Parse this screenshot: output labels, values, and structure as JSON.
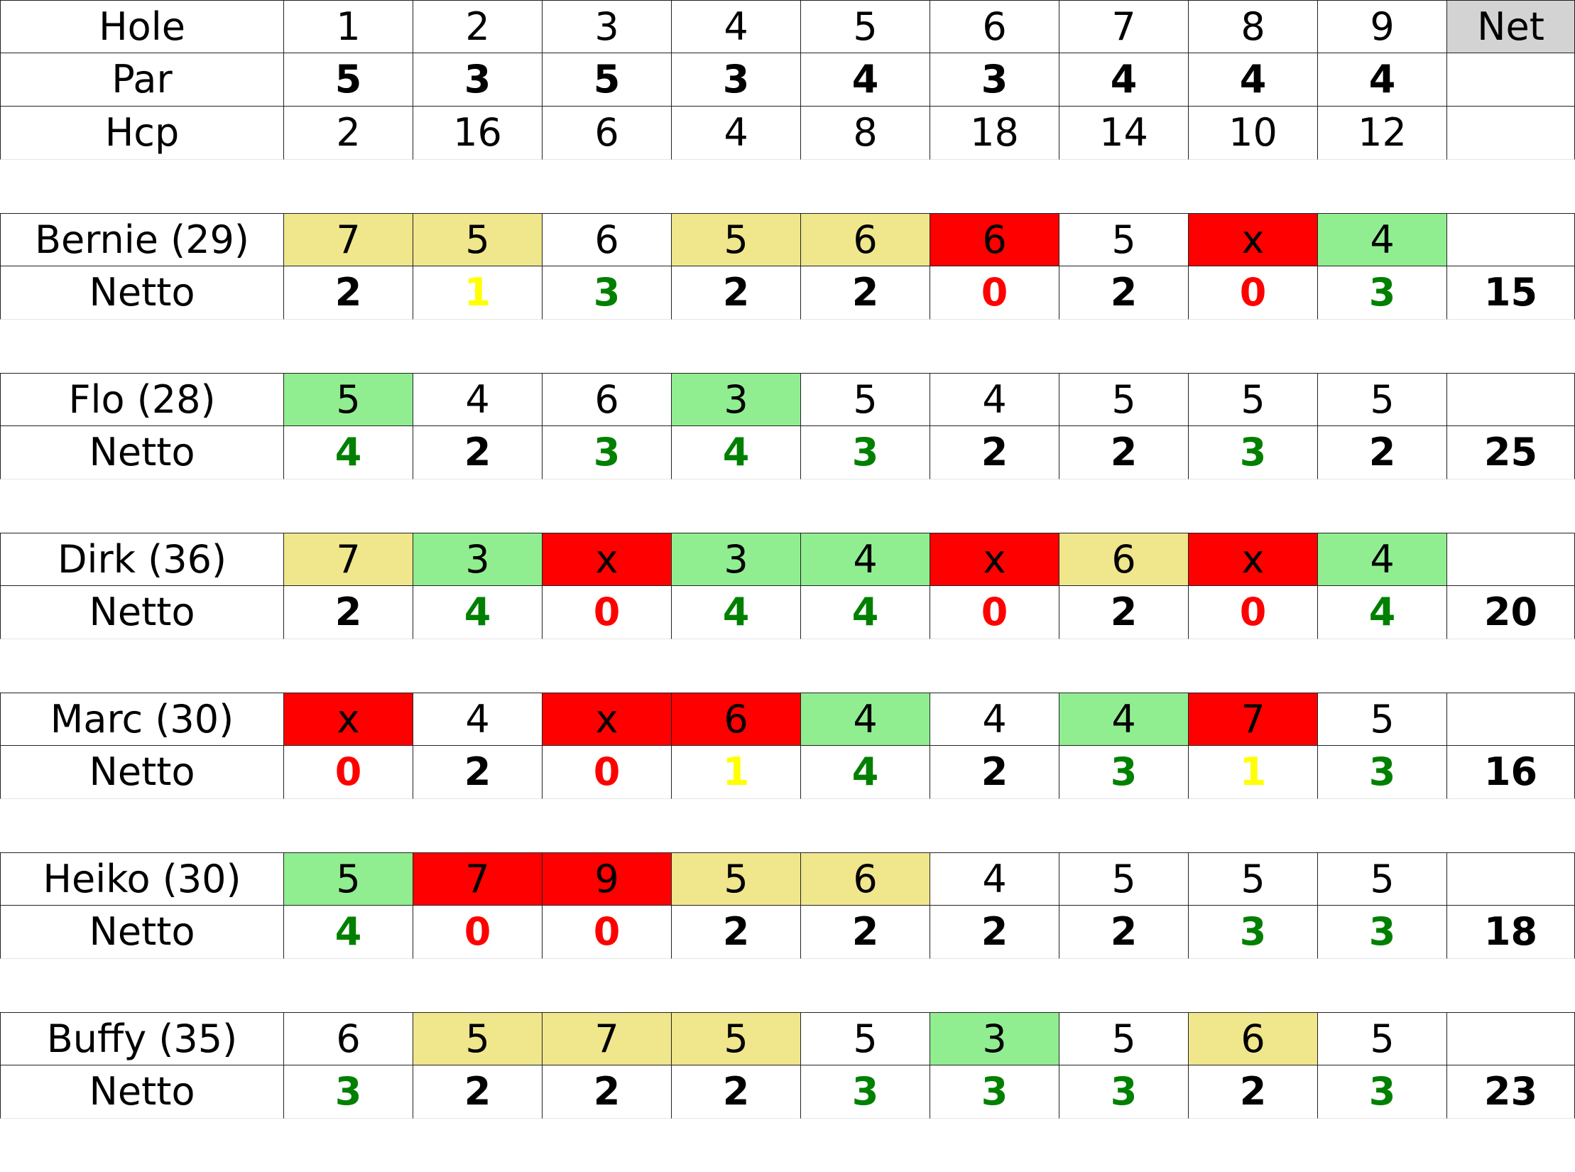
{
  "colors": {
    "header_net_bg": "#d3d3d3",
    "green_bg": "#90ee90",
    "khaki_bg": "#f0e68c",
    "red_bg": "#ff0000",
    "white_bg": "#ffffff",
    "netto_green": "#008000",
    "netto_red": "#ff0000",
    "netto_yellow": "#ffff00",
    "netto_black": "#000000"
  },
  "header": {
    "hole_label": "Hole",
    "holes": [
      "1",
      "2",
      "3",
      "4",
      "5",
      "6",
      "7",
      "8",
      "9"
    ],
    "net_label": "Net",
    "par_label": "Par",
    "par": [
      "5",
      "3",
      "5",
      "3",
      "4",
      "3",
      "4",
      "4",
      "4"
    ],
    "hcp_label": "Hcp",
    "hcp": [
      "2",
      "16",
      "6",
      "4",
      "8",
      "18",
      "14",
      "10",
      "12"
    ]
  },
  "players": [
    {
      "name": "Bernie (29)",
      "scores": [
        "7",
        "5",
        "6",
        "5",
        "6",
        "6",
        "5",
        "x",
        "4"
      ],
      "score_bg": [
        "khaki",
        "khaki",
        "white",
        "khaki",
        "khaki",
        "red",
        "white",
        "red",
        "green"
      ],
      "netto_label": "Netto",
      "netto": [
        "2",
        "1",
        "3",
        "2",
        "2",
        "0",
        "2",
        "0",
        "3"
      ],
      "netto_color": [
        "black",
        "yellow",
        "green",
        "black",
        "black",
        "red",
        "black",
        "red",
        "green"
      ],
      "total": "15"
    },
    {
      "name": "Flo (28)",
      "scores": [
        "5",
        "4",
        "6",
        "3",
        "5",
        "4",
        "5",
        "5",
        "5"
      ],
      "score_bg": [
        "green",
        "white",
        "white",
        "green",
        "white",
        "white",
        "white",
        "white",
        "white"
      ],
      "netto_label": "Netto",
      "netto": [
        "4",
        "2",
        "3",
        "4",
        "3",
        "2",
        "2",
        "3",
        "2"
      ],
      "netto_color": [
        "green",
        "black",
        "green",
        "green",
        "green",
        "black",
        "black",
        "green",
        "black"
      ],
      "total": "25"
    },
    {
      "name": "Dirk (36)",
      "scores": [
        "7",
        "3",
        "x",
        "3",
        "4",
        "x",
        "6",
        "x",
        "4"
      ],
      "score_bg": [
        "khaki",
        "green",
        "red",
        "green",
        "green",
        "red",
        "khaki",
        "red",
        "green"
      ],
      "netto_label": "Netto",
      "netto": [
        "2",
        "4",
        "0",
        "4",
        "4",
        "0",
        "2",
        "0",
        "4"
      ],
      "netto_color": [
        "black",
        "green",
        "red",
        "green",
        "green",
        "red",
        "black",
        "red",
        "green"
      ],
      "total": "20"
    },
    {
      "name": "Marc (30)",
      "scores": [
        "x",
        "4",
        "x",
        "6",
        "4",
        "4",
        "4",
        "7",
        "5"
      ],
      "score_bg": [
        "red",
        "white",
        "red",
        "red",
        "green",
        "white",
        "green",
        "red",
        "white"
      ],
      "netto_label": "Netto",
      "netto": [
        "0",
        "2",
        "0",
        "1",
        "4",
        "2",
        "3",
        "1",
        "3"
      ],
      "netto_color": [
        "red",
        "black",
        "red",
        "yellow",
        "green",
        "black",
        "green",
        "yellow",
        "green"
      ],
      "total": "16"
    },
    {
      "name": "Heiko (30)",
      "scores": [
        "5",
        "7",
        "9",
        "5",
        "6",
        "4",
        "5",
        "5",
        "5"
      ],
      "score_bg": [
        "green",
        "red",
        "red",
        "khaki",
        "khaki",
        "white",
        "white",
        "white",
        "white"
      ],
      "netto_label": "Netto",
      "netto": [
        "4",
        "0",
        "0",
        "2",
        "2",
        "2",
        "2",
        "3",
        "3"
      ],
      "netto_color": [
        "green",
        "red",
        "red",
        "black",
        "black",
        "black",
        "black",
        "green",
        "green"
      ],
      "total": "18"
    },
    {
      "name": "Buffy (35)",
      "scores": [
        "6",
        "5",
        "7",
        "5",
        "5",
        "3",
        "5",
        "6",
        "5"
      ],
      "score_bg": [
        "white",
        "khaki",
        "khaki",
        "khaki",
        "white",
        "green",
        "white",
        "khaki",
        "white"
      ],
      "netto_label": "Netto",
      "netto": [
        "3",
        "2",
        "2",
        "2",
        "3",
        "3",
        "3",
        "2",
        "3"
      ],
      "netto_color": [
        "green",
        "black",
        "black",
        "black",
        "green",
        "green",
        "green",
        "black",
        "green"
      ],
      "total": "23"
    }
  ]
}
